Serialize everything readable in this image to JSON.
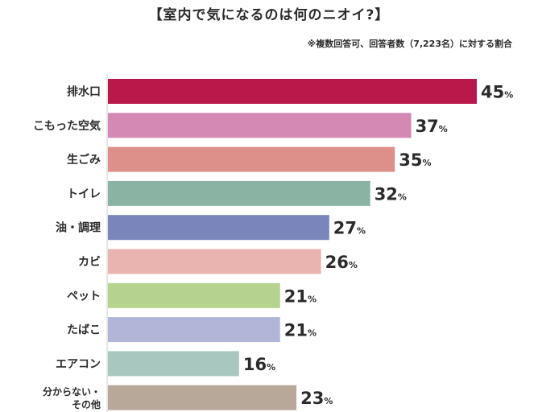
{
  "title": "【室内で気になるのは何のニオイ?】",
  "note": "※複数回答可、回答者数（7,223名）に対する割合",
  "chart_data": {
    "type": "bar",
    "orientation": "horizontal",
    "categories": [
      "排水口",
      "こもった空気",
      "生ごみ",
      "トイレ",
      "油・調理",
      "カビ",
      "ペット",
      "たばこ",
      "エアコン",
      "分からない・その他"
    ],
    "values": [
      45,
      37,
      35,
      32,
      27,
      26,
      21,
      21,
      16,
      23
    ],
    "unit": "%",
    "colors": [
      "#b8184a",
      "#d488b4",
      "#dd8f8a",
      "#8bb3a4",
      "#7a85bc",
      "#e9b3b0",
      "#b5d38e",
      "#b1b6d8",
      "#a8c7bf",
      "#b8a89a"
    ],
    "xlim": [
      0,
      45
    ],
    "grid": false,
    "legend": "none"
  }
}
